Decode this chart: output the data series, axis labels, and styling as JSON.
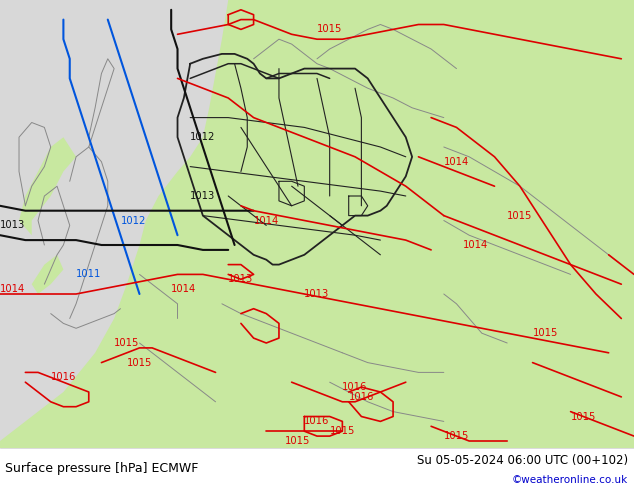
{
  "title_left": "Surface pressure [hPa] ECMWF",
  "title_right": "Su 05-05-2024 06:00 UTC (00+102)",
  "credit": "©weatheronline.co.uk",
  "sea_color": "#d8d8d8",
  "land_color": "#c8e8a0",
  "de_land_color": "#a8d878",
  "figsize": [
    6.34,
    4.9
  ],
  "dpi": 100,
  "footer_bg": "#ffffff",
  "credit_color": "#0000cc",
  "title_color": "#000000",
  "title_fontsize": 9.0,
  "credit_fontsize": 7.5,
  "red_isobar_color": "#dd0000",
  "blue_line_color": "#0055dd",
  "black_line_color": "#111111",
  "gray_coast_color": "#888888",
  "de_border_color": "#222222"
}
